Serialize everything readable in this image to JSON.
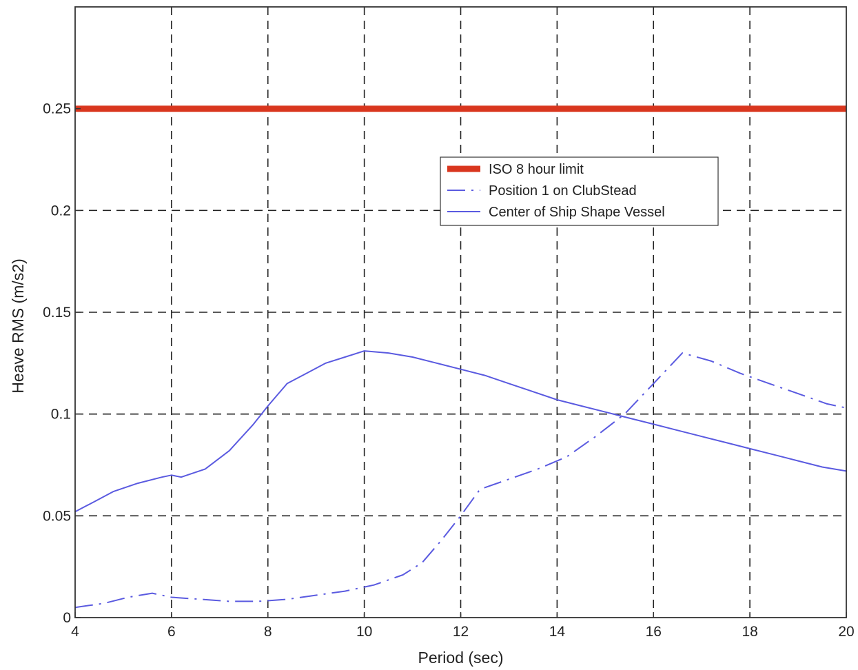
{
  "chart_data": {
    "type": "line",
    "title": "",
    "xlabel": "Period (sec)",
    "ylabel": "Heave RMS (m/s2)",
    "xlim": [
      4,
      20
    ],
    "ylim": [
      0,
      0.3
    ],
    "xticks": [
      4,
      6,
      8,
      10,
      12,
      14,
      16,
      18,
      20
    ],
    "xtick_labels": [
      "4",
      "6",
      "8",
      "10",
      "12",
      "14",
      "16",
      "18",
      "20"
    ],
    "yticks": [
      0,
      0.05,
      0.1,
      0.15,
      0.2,
      0.25
    ],
    "ytick_labels": [
      "0",
      "0.05",
      "0.1",
      "0.15",
      "0.2",
      "0.25"
    ],
    "grid": true,
    "legend_position": "upper-right",
    "series": [
      {
        "name": "ISO 8 hour limit",
        "color": "#d9361e",
        "style": "solid-thick",
        "x": [
          4,
          20
        ],
        "y": [
          0.25,
          0.25
        ]
      },
      {
        "name": "Position 1 on ClubStead",
        "color": "#5a5ae0",
        "style": "dash-dot",
        "x": [
          4,
          4.6,
          5.1,
          5.6,
          6.0,
          6.6,
          7.2,
          7.8,
          8.4,
          9.0,
          9.6,
          10.2,
          10.8,
          11.2,
          11.6,
          12.0,
          12.4,
          13.0,
          13.6,
          14.2,
          14.8,
          15.4,
          16.0,
          16.6,
          17.2,
          17.8,
          18.4,
          19.0,
          19.6,
          20.0
        ],
        "y": [
          0.005,
          0.007,
          0.01,
          0.012,
          0.01,
          0.009,
          0.008,
          0.008,
          0.009,
          0.011,
          0.013,
          0.016,
          0.021,
          0.027,
          0.038,
          0.05,
          0.063,
          0.068,
          0.073,
          0.079,
          0.089,
          0.1,
          0.115,
          0.13,
          0.126,
          0.12,
          0.115,
          0.11,
          0.105,
          0.103
        ]
      },
      {
        "name": "Center of Ship Shape Vessel",
        "color": "#5a5ae0",
        "style": "solid",
        "x": [
          4,
          4.4,
          4.8,
          5.3,
          5.8,
          6.0,
          6.2,
          6.7,
          7.2,
          7.7,
          8.0,
          8.4,
          8.8,
          9.2,
          9.6,
          10.0,
          10.5,
          11.0,
          11.5,
          12.0,
          12.5,
          13.0,
          13.5,
          14.0,
          14.5,
          15.0,
          15.5,
          16.0,
          16.5,
          17.0,
          17.5,
          18.0,
          18.5,
          19.0,
          19.5,
          20.0
        ],
        "y": [
          0.052,
          0.057,
          0.062,
          0.066,
          0.069,
          0.07,
          0.069,
          0.073,
          0.082,
          0.095,
          0.104,
          0.115,
          0.12,
          0.125,
          0.128,
          0.131,
          0.13,
          0.128,
          0.125,
          0.122,
          0.119,
          0.115,
          0.111,
          0.107,
          0.104,
          0.101,
          0.098,
          0.095,
          0.092,
          0.089,
          0.086,
          0.083,
          0.08,
          0.077,
          0.074,
          0.072
        ]
      }
    ]
  }
}
